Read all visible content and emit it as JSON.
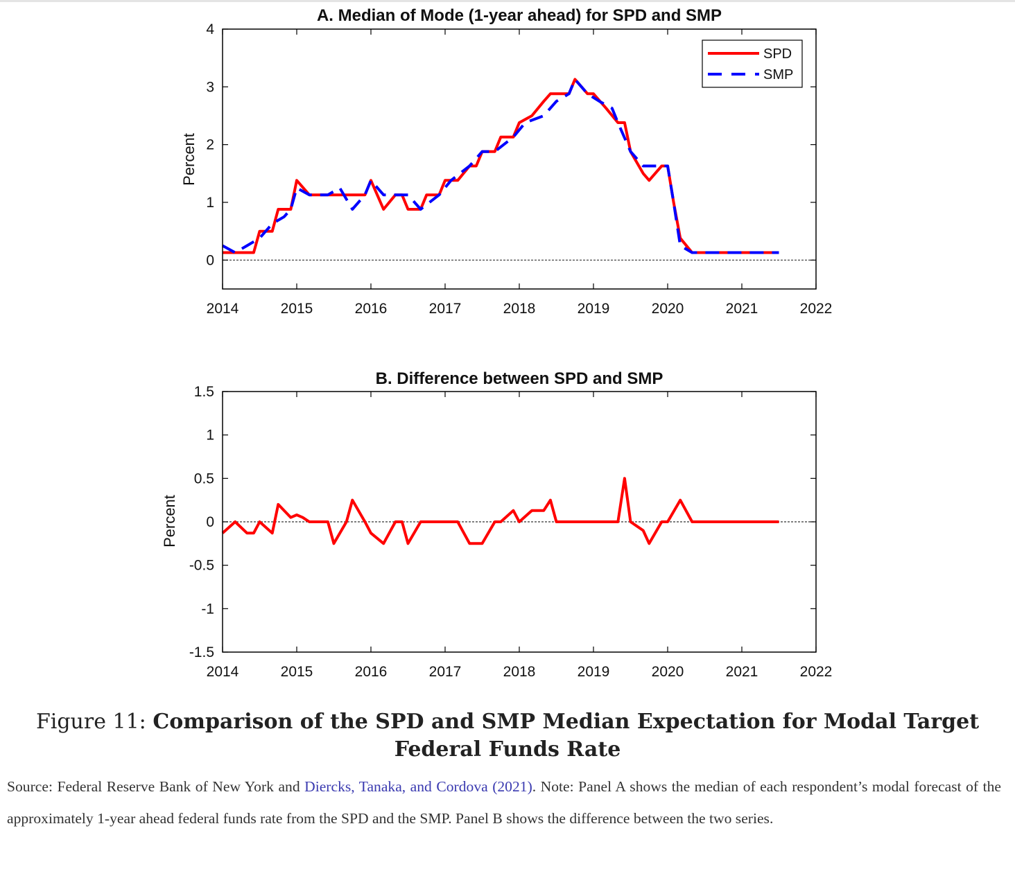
{
  "chart_data": [
    {
      "type": "line",
      "title": "A. Median of Mode (1-year ahead) for SPD and SMP",
      "ylabel": "Percent",
      "xlabel": "",
      "xlim": [
        2014,
        2022
      ],
      "ylim": [
        -0.5,
        4
      ],
      "x_ticks": [
        "2014",
        "2015",
        "2016",
        "2017",
        "2018",
        "2019",
        "2020",
        "2021",
        "2022"
      ],
      "y_ticks": [
        "0",
        "1",
        "2",
        "3",
        "4"
      ],
      "x_tick_values": [
        2014,
        2015,
        2016,
        2017,
        2018,
        2019,
        2020,
        2021,
        2022
      ],
      "y_tick_values": [
        0,
        1,
        2,
        3,
        4
      ],
      "reference_line": 0,
      "legend": "top-right",
      "series": [
        {
          "name": "SPD",
          "color": "#ff0000",
          "style": "solid",
          "x": [
            2014.0,
            2014.17,
            2014.42,
            2014.5,
            2014.67,
            2014.75,
            2014.92,
            2015.0,
            2015.17,
            2015.33,
            2015.42,
            2015.58,
            2015.67,
            2015.75,
            2015.92,
            2016.0,
            2016.17,
            2016.33,
            2016.42,
            2016.5,
            2016.67,
            2016.75,
            2016.92,
            2017.0,
            2017.17,
            2017.33,
            2017.42,
            2017.5,
            2017.67,
            2017.75,
            2017.92,
            2018.0,
            2018.17,
            2018.33,
            2018.42,
            2018.5,
            2018.67,
            2018.75,
            2018.92,
            2019.0,
            2019.17,
            2019.33,
            2019.42,
            2019.5,
            2019.67,
            2019.75,
            2019.92,
            2020.0,
            2020.08,
            2020.17,
            2020.33,
            2020.5,
            2020.75,
            2021.0,
            2021.25,
            2021.5
          ],
          "y": [
            0.13,
            0.13,
            0.13,
            0.5,
            0.5,
            0.88,
            0.88,
            1.38,
            1.13,
            1.13,
            1.13,
            1.13,
            1.13,
            1.13,
            1.13,
            1.38,
            0.88,
            1.13,
            1.13,
            0.88,
            0.88,
            1.13,
            1.13,
            1.38,
            1.38,
            1.63,
            1.63,
            1.88,
            1.88,
            2.13,
            2.13,
            2.38,
            2.5,
            2.75,
            2.88,
            2.88,
            2.88,
            3.13,
            2.88,
            2.88,
            2.63,
            2.38,
            2.38,
            1.88,
            1.5,
            1.38,
            1.63,
            1.63,
            1.0,
            0.38,
            0.13,
            0.13,
            0.13,
            0.13,
            0.13,
            0.13
          ]
        },
        {
          "name": "SMP",
          "color": "#0000ff",
          "style": "dashed",
          "x": [
            2014.0,
            2014.17,
            2014.33,
            2014.5,
            2014.67,
            2014.83,
            2014.92,
            2015.0,
            2015.17,
            2015.42,
            2015.58,
            2015.75,
            2015.92,
            2016.0,
            2016.17,
            2016.33,
            2016.5,
            2016.67,
            2016.92,
            2017.08,
            2017.33,
            2017.5,
            2017.67,
            2017.92,
            2018.08,
            2018.33,
            2018.5,
            2018.67,
            2018.75,
            2018.92,
            2019.08,
            2019.25,
            2019.33,
            2019.5,
            2019.67,
            2019.83,
            2020.0,
            2020.08,
            2020.17,
            2020.33,
            2020.5,
            2020.75,
            2021.0,
            2021.25,
            2021.5
          ],
          "y": [
            0.25,
            0.13,
            0.25,
            0.38,
            0.63,
            0.75,
            0.88,
            1.25,
            1.13,
            1.13,
            1.25,
            0.88,
            1.13,
            1.38,
            1.13,
            1.13,
            1.13,
            0.88,
            1.13,
            1.38,
            1.63,
            1.88,
            1.88,
            2.13,
            2.38,
            2.5,
            2.75,
            2.88,
            3.13,
            2.88,
            2.75,
            2.63,
            2.38,
            1.88,
            1.63,
            1.63,
            1.63,
            1.0,
            0.25,
            0.13,
            0.13,
            0.13,
            0.13,
            0.13,
            0.13
          ]
        }
      ]
    },
    {
      "type": "line",
      "title": "B. Difference between SPD and SMP",
      "ylabel": "Percent",
      "xlabel": "",
      "xlim": [
        2014,
        2022
      ],
      "ylim": [
        -1.5,
        1.5
      ],
      "x_ticks": [
        "2014",
        "2015",
        "2016",
        "2017",
        "2018",
        "2019",
        "2020",
        "2021",
        "2022"
      ],
      "y_ticks": [
        "-1.5",
        "-1",
        "-0.5",
        "0",
        "0.5",
        "1",
        "1.5"
      ],
      "x_tick_values": [
        2014,
        2015,
        2016,
        2017,
        2018,
        2019,
        2020,
        2021,
        2022
      ],
      "y_tick_values": [
        -1.5,
        -1,
        -0.5,
        0,
        0.5,
        1,
        1.5
      ],
      "reference_line": 0,
      "series": [
        {
          "color": "#ff0000",
          "style": "solid",
          "x": [
            2014.0,
            2014.17,
            2014.33,
            2014.42,
            2014.5,
            2014.67,
            2014.75,
            2014.92,
            2015.0,
            2015.08,
            2015.17,
            2015.42,
            2015.5,
            2015.67,
            2015.75,
            2015.92,
            2016.0,
            2016.17,
            2016.33,
            2016.42,
            2016.5,
            2016.67,
            2016.92,
            2017.0,
            2017.17,
            2017.33,
            2017.5,
            2017.67,
            2017.75,
            2017.92,
            2018.0,
            2018.17,
            2018.33,
            2018.42,
            2018.5,
            2018.67,
            2018.92,
            2019.0,
            2019.25,
            2019.33,
            2019.42,
            2019.5,
            2019.67,
            2019.75,
            2019.92,
            2020.0,
            2020.17,
            2020.33,
            2020.5,
            2021.0,
            2021.5
          ],
          "y": [
            -0.13,
            0.0,
            -0.13,
            -0.13,
            0.0,
            -0.13,
            0.2,
            0.05,
            0.08,
            0.05,
            0.0,
            0.0,
            -0.25,
            0.0,
            0.25,
            0.0,
            -0.13,
            -0.25,
            0.0,
            0.0,
            -0.25,
            0.0,
            0.0,
            0.0,
            0.0,
            -0.25,
            -0.25,
            0.0,
            0.0,
            0.13,
            0.0,
            0.13,
            0.13,
            0.25,
            0.0,
            0.0,
            0.0,
            0.0,
            0.0,
            0.0,
            0.5,
            0.0,
            -0.1,
            -0.25,
            0.0,
            0.0,
            0.25,
            0.0,
            0.0,
            0.0,
            0.0
          ]
        }
      ]
    }
  ],
  "caption": {
    "label": "Figure 11:",
    "title": "Comparison of the SPD and SMP Median Expectation for Modal Target Federal Funds Rate"
  },
  "note": {
    "prefix": "Source: Federal Reserve Bank of New York and ",
    "citation": "Diercks, Tanaka, and Cordova (2021)",
    "suffix": ". Note: Panel A shows the median of each respondent’s modal forecast of the approximately 1-year ahead federal funds rate from the SPD and the SMP. Panel B shows the difference between the two series."
  }
}
